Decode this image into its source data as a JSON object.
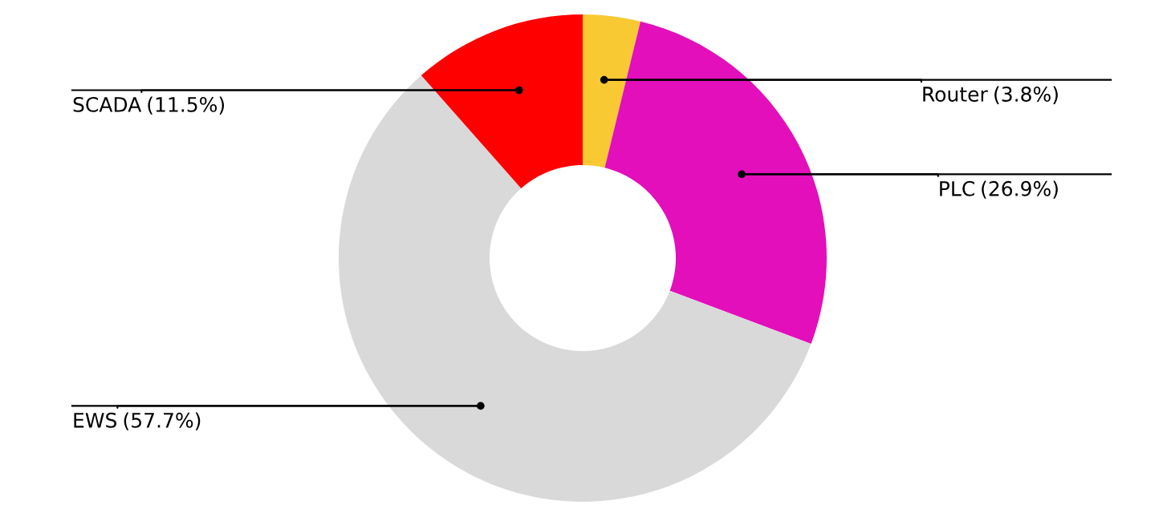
{
  "chart_data": {
    "type": "donut",
    "categories": [
      "Router",
      "PLC",
      "EWS",
      "SCADA"
    ],
    "values": [
      3.8,
      26.9,
      57.7,
      11.5
    ],
    "colors": [
      "#f9c933",
      "#e20fbb",
      "#d9d9d9",
      "#ff0000"
    ],
    "value_labels": [
      "(3.8%)",
      "(26.9%)",
      "(57.7%)",
      "(11.5%)"
    ],
    "legend": false
  }
}
